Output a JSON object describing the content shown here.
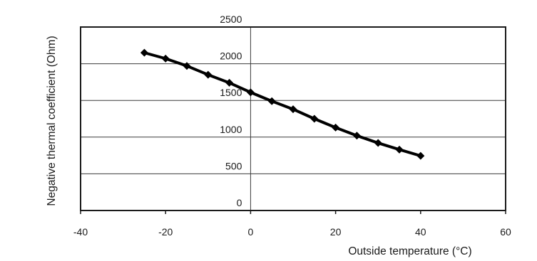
{
  "chart_data": {
    "type": "line",
    "title": "",
    "xlabel": "Outside temperature (°C)",
    "ylabel": "Negative thermal coefficient (Ohm)",
    "xlim": [
      -40,
      60
    ],
    "ylim": [
      0,
      2500
    ],
    "x_ticks": [
      -40,
      -20,
      0,
      20,
      40,
      60
    ],
    "y_ticks": [
      0,
      500,
      1000,
      1500,
      2000,
      2500
    ],
    "grid": "horizontal",
    "legend": "none",
    "marker": "diamond",
    "line_color": "#000000",
    "series": [
      {
        "x": [
          -25,
          -20,
          -15,
          -10,
          -5,
          0,
          5,
          10,
          15,
          20,
          25,
          30,
          35,
          40
        ],
        "values": [
          2150,
          2070,
          1970,
          1850,
          1740,
          1610,
          1490,
          1380,
          1250,
          1130,
          1020,
          920,
          830,
          745
        ]
      }
    ]
  }
}
